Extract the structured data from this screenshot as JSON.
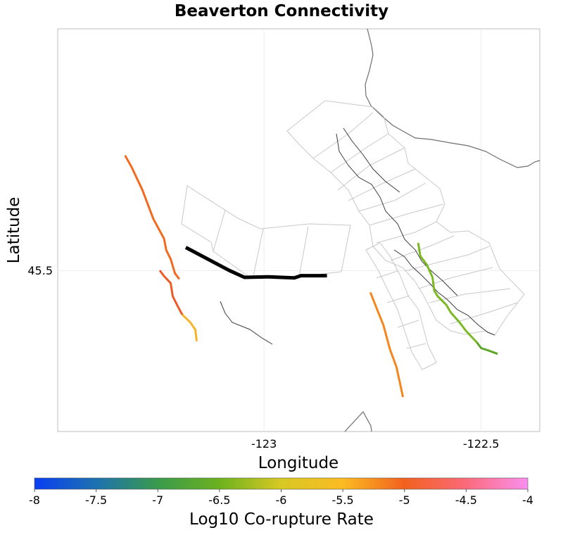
{
  "chart_data": {
    "type": "map",
    "title": "Beaverton Connectivity",
    "xlabel": "Longitude",
    "ylabel": "Latitude",
    "xlim": [
      -123.475,
      -122.365
    ],
    "ylim": [
      45.22,
      45.92
    ],
    "x_ticks": [
      {
        "value": -123,
        "label": "-123"
      },
      {
        "value": -122.5,
        "label": "-122.5"
      }
    ],
    "y_ticks": [
      {
        "value": 45.5,
        "label": "45.5"
      }
    ],
    "grid": true,
    "source_fault": {
      "name": "Beaverton",
      "color": "#000000",
      "points": [
        [
          -123.18,
          45.54
        ],
        [
          -123.08,
          45.5
        ],
        [
          -123.045,
          45.488
        ],
        [
          -122.99,
          45.489
        ],
        [
          -122.93,
          45.487
        ],
        [
          -122.915,
          45.491
        ],
        [
          -122.855,
          45.491
        ]
      ]
    },
    "colored_faults": [
      {
        "log10_rate": -5.1,
        "color": "#f26a1e",
        "points": [
          [
            -123.32,
            45.7
          ],
          [
            -123.305,
            45.68
          ],
          [
            -123.28,
            45.64
          ],
          [
            -123.255,
            45.59
          ],
          [
            -123.23,
            45.555
          ],
          [
            -123.225,
            45.535
          ],
          [
            -123.215,
            45.52
          ],
          [
            -123.205,
            45.495
          ],
          [
            -123.195,
            45.485
          ]
        ]
      },
      {
        "log10_rate": -4.95,
        "color": "#ee5a26",
        "points": [
          [
            -123.24,
            45.5
          ],
          [
            -123.23,
            45.49
          ],
          [
            -123.215,
            45.478
          ],
          [
            -123.21,
            45.455
          ],
          [
            -123.198,
            45.437
          ],
          [
            -123.188,
            45.423
          ]
        ]
      },
      {
        "log10_rate": -5.7,
        "color": "#f8b428",
        "points": [
          [
            -123.188,
            45.423
          ],
          [
            -123.17,
            45.41
          ],
          [
            -123.158,
            45.397
          ],
          [
            -123.155,
            45.377
          ]
        ]
      },
      {
        "log10_rate": -5.3,
        "color": "#f5861f",
        "points": [
          [
            -122.755,
            45.462
          ],
          [
            -122.74,
            45.433
          ],
          [
            -122.725,
            45.405
          ],
          [
            -122.71,
            45.363
          ],
          [
            -122.695,
            45.332
          ],
          [
            -122.68,
            45.28
          ]
        ]
      },
      {
        "log10_rate": -6.6,
        "color": "#7cba25",
        "points": [
          [
            -122.645,
            45.548
          ],
          [
            -122.64,
            45.525
          ],
          [
            -122.625,
            45.51
          ],
          [
            -122.612,
            45.488
          ],
          [
            -122.608,
            45.465
          ],
          [
            -122.6,
            45.455
          ],
          [
            -122.58,
            45.44
          ],
          [
            -122.57,
            45.427
          ],
          [
            -122.55,
            45.41
          ],
          [
            -122.535,
            45.395
          ],
          [
            -122.51,
            45.375
          ]
        ]
      },
      {
        "log10_rate": -6.85,
        "color": "#5ca629",
        "points": [
          [
            -122.51,
            45.375
          ],
          [
            -122.5,
            45.365
          ],
          [
            -122.48,
            45.36
          ],
          [
            -122.462,
            45.355
          ]
        ]
      }
    ],
    "colorbar": {
      "label": "Log10 Co-rupture Rate",
      "min": -8,
      "max": -4,
      "ticks": [
        "-8",
        "-7.5",
        "-7",
        "-6.5",
        "-6",
        "-5.5",
        "-5",
        "-4.5",
        "-4"
      ],
      "colors": [
        {
          "stop": -8,
          "color": "#0a3ef2"
        },
        {
          "stop": -7.5,
          "color": "#1c72b0"
        },
        {
          "stop": -7,
          "color": "#3a9a4c"
        },
        {
          "stop": -6.5,
          "color": "#6cb21e"
        },
        {
          "stop": -6,
          "color": "#d8c824"
        },
        {
          "stop": -5.5,
          "color": "#fbbb22"
        },
        {
          "stop": -5,
          "color": "#f2611e"
        },
        {
          "stop": -4.5,
          "color": "#fb6a7a"
        },
        {
          "stop": -4,
          "color": "#fa8fef"
        }
      ]
    }
  }
}
